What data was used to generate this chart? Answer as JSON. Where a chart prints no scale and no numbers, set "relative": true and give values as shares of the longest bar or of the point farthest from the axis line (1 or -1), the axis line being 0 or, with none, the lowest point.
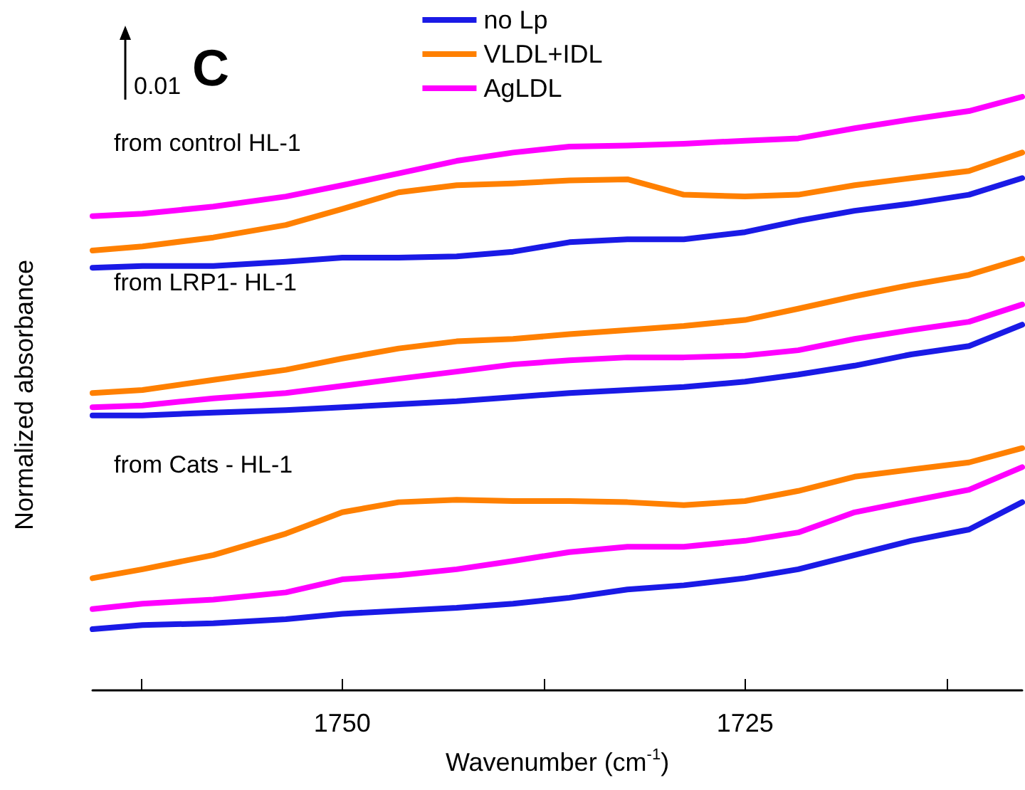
{
  "chart_data": {
    "type": "line",
    "relative": true,
    "xlabel": "Wavenumber (cm$^{-1}$)",
    "ylabel": "Normalized absorbance",
    "xlim": [
      1765.5,
      1707.8
    ],
    "xticks": [
      {
        "value": 1762.5,
        "label": null
      },
      1750,
      {
        "value": 1737.5,
        "label": null
      },
      1725,
      {
        "value": 1712.5,
        "label": null
      }
    ],
    "x": [
      1765.5,
      1762.4,
      1758.0,
      1753.5,
      1750,
      1746.5,
      1742.9,
      1739.4,
      1735.9,
      1732.3,
      1728.8,
      1725,
      1721.7,
      1718.2,
      1714.7,
      1711.1,
      1707.8
    ],
    "series": [
      {
        "name": "no Lp",
        "color": "#1a1ae6",
        "values": [
          0.712,
          0.715,
          0.715,
          0.722,
          0.729,
          0.729,
          0.731,
          0.739,
          0.755,
          0.76,
          0.76,
          0.772,
          0.791,
          0.808,
          0.82,
          0.835,
          0.863
        ]
      },
      {
        "name": "VLDL+IDL",
        "color": "#ff8000",
        "values": [
          0.741,
          0.748,
          0.763,
          0.784,
          0.811,
          0.839,
          0.851,
          0.854,
          0.859,
          0.861,
          0.835,
          0.832,
          0.835,
          0.851,
          0.863,
          0.875,
          0.906
        ]
      },
      {
        "name": "AgLDL",
        "color": "#ff00ff",
        "values": [
          0.799,
          0.803,
          0.815,
          0.832,
          0.851,
          0.871,
          0.892,
          0.906,
          0.916,
          0.918,
          0.921,
          0.926,
          0.93,
          0.947,
          0.962,
          0.976,
          1.0
        ]
      },
      {
        "color": "#ff8000",
        "values": [
          0.501,
          0.506,
          0.523,
          0.54,
          0.559,
          0.576,
          0.588,
          0.592,
          0.6,
          0.607,
          0.614,
          0.624,
          0.643,
          0.664,
          0.683,
          0.7,
          0.727
        ]
      },
      {
        "color": "#ff00ff",
        "values": [
          0.477,
          0.48,
          0.492,
          0.501,
          0.513,
          0.525,
          0.537,
          0.549,
          0.556,
          0.561,
          0.561,
          0.564,
          0.573,
          0.592,
          0.607,
          0.621,
          0.65
        ]
      },
      {
        "color": "#1a1ae6",
        "values": [
          0.463,
          0.463,
          0.468,
          0.472,
          0.477,
          0.482,
          0.487,
          0.494,
          0.501,
          0.506,
          0.511,
          0.52,
          0.532,
          0.547,
          0.566,
          0.58,
          0.616
        ]
      },
      {
        "color": "#ff8000",
        "values": [
          0.189,
          0.204,
          0.228,
          0.264,
          0.3,
          0.317,
          0.321,
          0.319,
          0.319,
          0.317,
          0.312,
          0.319,
          0.336,
          0.36,
          0.372,
          0.384,
          0.408
        ]
      },
      {
        "color": "#ff00ff",
        "values": [
          0.137,
          0.146,
          0.153,
          0.165,
          0.187,
          0.194,
          0.204,
          0.218,
          0.233,
          0.242,
          0.242,
          0.252,
          0.266,
          0.3,
          0.319,
          0.338,
          0.376
        ]
      },
      {
        "color": "#1a1ae6",
        "values": [
          0.103,
          0.11,
          0.113,
          0.12,
          0.129,
          0.134,
          0.139,
          0.146,
          0.156,
          0.17,
          0.177,
          0.189,
          0.204,
          0.228,
          0.252,
          0.271,
          0.317
        ]
      }
    ],
    "annotations": [
      "0.01",
      "C",
      "from control HL-1",
      "from LRP1- HL-1",
      "from Cats - HL-1"
    ],
    "legend": "top",
    "grid": false,
    "marker": "none",
    "line_style": "solid"
  }
}
